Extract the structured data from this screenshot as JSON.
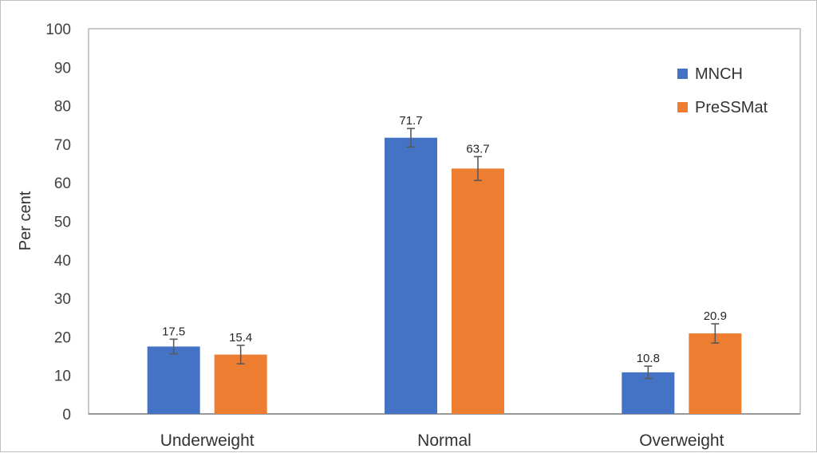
{
  "chart_data": {
    "type": "bar",
    "title": "",
    "xlabel": "",
    "ylabel": "Per cent",
    "ylim": [
      0,
      100
    ],
    "yticks": [
      0,
      10,
      20,
      30,
      40,
      50,
      60,
      70,
      80,
      90,
      100
    ],
    "categories": [
      "Underweight",
      "Normal",
      "Overweight"
    ],
    "series": [
      {
        "name": "MNCH",
        "color": "#4472C4",
        "values": [
          17.5,
          71.7,
          10.8
        ],
        "error": [
          [
            15.6,
            19.4
          ],
          [
            69.3,
            74.1
          ],
          [
            9.2,
            12.4
          ]
        ]
      },
      {
        "name": "PreSSMat",
        "color": "#ED7D31",
        "values": [
          15.4,
          63.7,
          20.9
        ],
        "error": [
          [
            13.0,
            17.8
          ],
          [
            60.6,
            66.8
          ],
          [
            18.4,
            23.4
          ]
        ]
      }
    ],
    "data_labels": [
      [
        "17.5",
        "71.7",
        "10.8"
      ],
      [
        "15.4",
        "63.7",
        "20.9"
      ]
    ],
    "legend_position": "top-right",
    "grid": false
  }
}
